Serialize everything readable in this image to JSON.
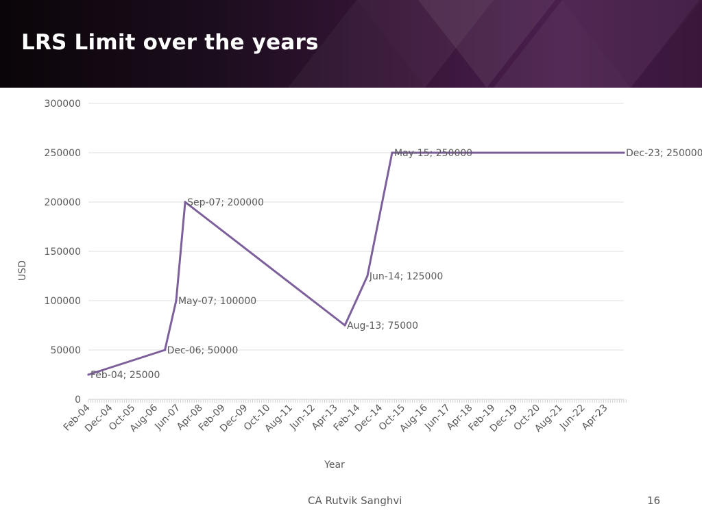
{
  "slide": {
    "title": "LRS Limit over the years",
    "author": "CA Rutvik Sanghvi",
    "page_number": "16"
  },
  "colors": {
    "line": "#7c5f9b",
    "grid": "#dcdcdc",
    "text": "#595959",
    "header_dark": "#0a0508",
    "header_purple": "#4a1f4c"
  },
  "chart_data": {
    "type": "line",
    "title": "",
    "xlabel": "Year",
    "ylabel": "USD",
    "ylim": [
      0,
      300000
    ],
    "yticks": [
      "0",
      "50000",
      "100000",
      "150000",
      "200000",
      "250000",
      "300000"
    ],
    "xlim": [
      "2004-02",
      "2023-12"
    ],
    "xticks": [
      "Feb-04",
      "Dec-04",
      "Oct-05",
      "Aug-06",
      "Jun-07",
      "Apr-08",
      "Feb-09",
      "Dec-09",
      "Oct-10",
      "Aug-11",
      "Jun-12",
      "Apr-13",
      "Feb-14",
      "Dec-14",
      "Oct-15",
      "Aug-16",
      "Jun-17",
      "Apr-18",
      "Feb-19",
      "Dec-19",
      "Oct-20",
      "Aug-21",
      "Jun-22",
      "Apr-23"
    ],
    "grid": true,
    "legend": false,
    "series": [
      {
        "points": [
          {
            "x": "2004-02",
            "y": 25000,
            "label": "Feb-04; 25000"
          },
          {
            "x": "2006-12",
            "y": 50000,
            "label": "Dec-06; 50000"
          },
          {
            "x": "2007-05",
            "y": 100000,
            "label": "May-07; 100000"
          },
          {
            "x": "2007-09",
            "y": 200000,
            "label": "Sep-07; 200000"
          },
          {
            "x": "2013-08",
            "y": 75000,
            "label": "Aug-13; 75000"
          },
          {
            "x": "2014-06",
            "y": 125000,
            "label": "Jun-14; 125000"
          },
          {
            "x": "2015-05",
            "y": 250000,
            "label": "May-15; 250000"
          },
          {
            "x": "2023-12",
            "y": 250000,
            "label": "Dec-23; 250000"
          }
        ]
      }
    ]
  }
}
